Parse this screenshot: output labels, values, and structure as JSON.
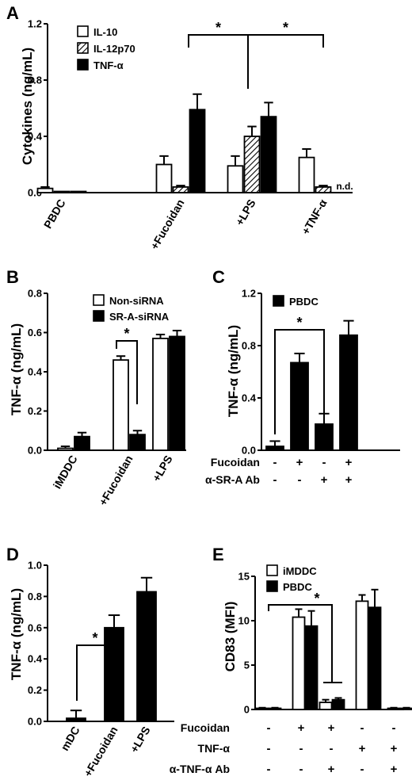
{
  "chart_data": [
    {
      "panel": "A",
      "type": "bar",
      "ylabel": "Cytokines (ng/mL)",
      "ylim": [
        0,
        1.2
      ],
      "yticks": [
        "0.0",
        "0.4",
        "0.8",
        "1.2"
      ],
      "categories": [
        "PBDC",
        "+Fucoidan",
        "+LPS",
        "+TNF-α"
      ],
      "series": [
        {
          "name": "IL-10",
          "fill": "open",
          "values": [
            0.03,
            0.2,
            0.19,
            0.25
          ],
          "errors": [
            0.01,
            0.06,
            0.07,
            0.06
          ]
        },
        {
          "name": "IL-12p70",
          "fill": "hatched",
          "values": [
            0.0,
            0.04,
            0.4,
            0.04
          ],
          "errors": [
            0,
            0.01,
            0.07,
            0.01
          ]
        },
        {
          "name": "TNF-α",
          "fill": "solid",
          "values": [
            0.0,
            0.59,
            0.54,
            null
          ],
          "errors": [
            0,
            0.11,
            0.1,
            0
          ]
        }
      ],
      "legend": "top-left",
      "na_label": "n.d.",
      "significance": [
        {
          "from": 1,
          "to": 2,
          "label": "*"
        },
        {
          "from": 2,
          "to": 3,
          "label": "*"
        }
      ]
    },
    {
      "panel": "B",
      "type": "bar",
      "ylabel": "TNF-α (ng/mL)",
      "ylim": [
        0,
        0.8
      ],
      "yticks": [
        "0.0",
        "0.2",
        "0.4",
        "0.6",
        "0.8"
      ],
      "categories": [
        "iMDDC",
        "+Fucoidan",
        "+LPS"
      ],
      "series": [
        {
          "name": "Non-siRNA",
          "fill": "open",
          "values": [
            0.01,
            0.46,
            0.57
          ],
          "errors": [
            0.01,
            0.02,
            0.02
          ]
        },
        {
          "name": "SR-A-siRNA",
          "fill": "solid",
          "values": [
            0.07,
            0.08,
            0.58
          ],
          "errors": [
            0.02,
            0.02,
            0.03
          ]
        }
      ],
      "legend": "top-right",
      "significance_label": "*"
    },
    {
      "panel": "C",
      "type": "bar",
      "ylabel": "TNF-α (ng/mL)",
      "ylim": [
        0,
        1.2
      ],
      "yticks": [
        "0.0",
        "0.4",
        "0.8",
        "1.2"
      ],
      "series": [
        {
          "name": "PBDC",
          "fill": "solid",
          "values": [
            0.03,
            0.67,
            0.2,
            0.88
          ],
          "errors": [
            0.04,
            0.07,
            0.08,
            0.11
          ]
        }
      ],
      "legend": "top-left",
      "conditions": [
        {
          "label": "Fucoidan",
          "signs": [
            "-",
            "+",
            "-",
            "+"
          ]
        },
        {
          "label": "α-SR-A Ab",
          "signs": [
            "-",
            "-",
            "+",
            "+"
          ]
        }
      ],
      "significance_label": "*"
    },
    {
      "panel": "D",
      "type": "bar",
      "ylabel": "TNF-α (ng/mL)",
      "ylim": [
        0,
        1.0
      ],
      "yticks": [
        "0.0",
        "0.2",
        "0.4",
        "0.6",
        "0.8",
        "1.0"
      ],
      "categories": [
        "mDC",
        "+Fucoidan",
        "+LPS"
      ],
      "series": [
        {
          "fill": "solid",
          "values": [
            0.02,
            0.6,
            0.83
          ],
          "errors": [
            0.05,
            0.08,
            0.09
          ]
        }
      ],
      "significance_label": "*"
    },
    {
      "panel": "E",
      "type": "bar",
      "ylabel": "CD83 (MFI)",
      "ylim": [
        0,
        15
      ],
      "yticks": [
        "0",
        "5",
        "10",
        "15"
      ],
      "series": [
        {
          "name": "iMDDC",
          "fill": "open",
          "values": [
            0.1,
            10.4,
            0.8,
            12.2,
            0.1
          ],
          "errors": [
            0.1,
            0.9,
            0.3,
            0.7,
            0.1
          ]
        },
        {
          "name": "PBDC",
          "fill": "solid",
          "values": [
            0.1,
            9.4,
            1.1,
            11.5,
            0.1
          ],
          "errors": [
            0.1,
            1.7,
            0.2,
            2.0,
            0.1
          ]
        }
      ],
      "legend": "top-left",
      "conditions": [
        {
          "label": "Fucoidan",
          "signs": [
            "-",
            "+",
            "+",
            "-",
            "-"
          ]
        },
        {
          "label": "TNF-α",
          "signs": [
            "-",
            "-",
            "-",
            "+",
            "+"
          ]
        },
        {
          "label": "α-TNF-α Ab",
          "signs": [
            "-",
            "-",
            "+",
            "-",
            "+"
          ]
        }
      ],
      "significance_label": "*"
    }
  ]
}
